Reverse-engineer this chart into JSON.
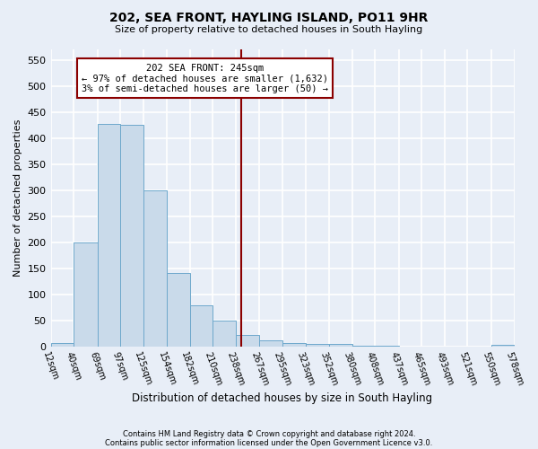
{
  "title": "202, SEA FRONT, HAYLING ISLAND, PO11 9HR",
  "subtitle": "Size of property relative to detached houses in South Hayling",
  "xlabel": "Distribution of detached houses by size in South Hayling",
  "ylabel": "Number of detached properties",
  "footnote1": "Contains HM Land Registry data © Crown copyright and database right 2024.",
  "footnote2": "Contains public sector information licensed under the Open Government Licence v3.0.",
  "bar_color": "#c9daea",
  "bar_edge_color": "#6ea8cc",
  "vline_x": 245,
  "vline_color": "#8b0000",
  "annotation_lines": [
    "202 SEA FRONT: 245sqm",
    "← 97% of detached houses are smaller (1,632)",
    "3% of semi-detached houses are larger (50) →"
  ],
  "annotation_box_color": "#8b0000",
  "bin_edges": [
    12,
    40,
    69,
    97,
    125,
    154,
    182,
    210,
    238,
    267,
    295,
    323,
    352,
    380,
    408,
    437,
    465,
    493,
    521,
    550,
    578
  ],
  "bar_heights": [
    8,
    200,
    428,
    425,
    300,
    142,
    80,
    50,
    22,
    12,
    8,
    6,
    5,
    2,
    2,
    1,
    0,
    0,
    0,
    3
  ],
  "yticks": [
    0,
    50,
    100,
    150,
    200,
    250,
    300,
    350,
    400,
    450,
    500,
    550
  ],
  "ylim": [
    0,
    570
  ],
  "background_color": "#e8eef7",
  "grid_color": "#ffffff"
}
